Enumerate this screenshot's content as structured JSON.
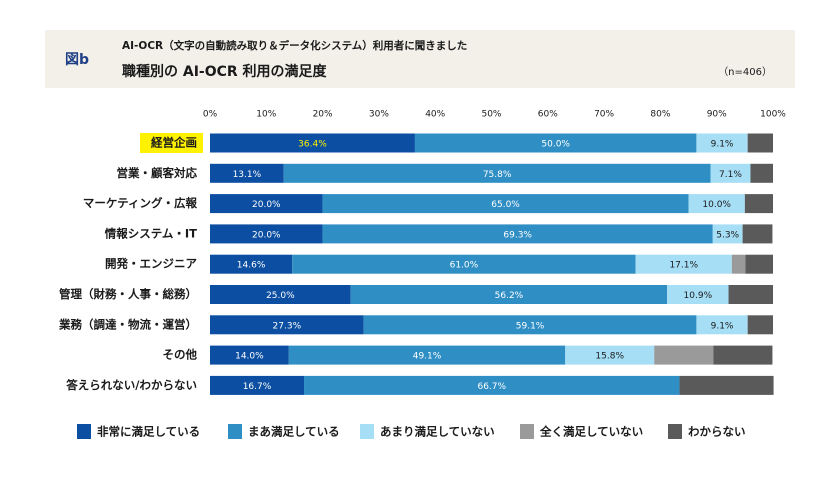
{
  "header": {
    "figure": "図b",
    "subtitle": "AI-OCR（文字の自動読み取り＆データ化システム）利用者に聞きました",
    "title": "職種別の AI-OCR 利用の満足度",
    "note": "（n=406）"
  },
  "chart_data": {
    "type": "stacked-bar-horizontal",
    "categories": [
      "経営企画",
      "営業・顧客対応",
      "マーケティング・広報",
      "情報システム・IT",
      "開発・エンジニア",
      "管理（財務・人事・総務）",
      "業務（調達・物流・運営）",
      "その他",
      "答えられない/わからない"
    ],
    "highlight_index": 0,
    "highlight_color": "#fff200",
    "xlim": [
      0,
      100
    ],
    "xticks": [
      {
        "value": 0,
        "label": "0%"
      },
      {
        "value": 10,
        "label": "10%"
      },
      {
        "value": 20,
        "label": "20%"
      },
      {
        "value": 30,
        "label": "30%"
      },
      {
        "value": 40,
        "label": "40%"
      },
      {
        "value": 50,
        "label": "50%"
      },
      {
        "value": 60,
        "label": "60%"
      },
      {
        "value": 70,
        "label": "70%"
      },
      {
        "value": 80,
        "label": "80%"
      },
      {
        "value": 90,
        "label": "90%"
      },
      {
        "value": 100,
        "label": "100%"
      }
    ],
    "series": [
      {
        "name": "非常に満足している",
        "color": "#0b4ea2",
        "label_color": "#ffffff",
        "values": [
          36.4,
          13.1,
          20.0,
          20.0,
          14.6,
          25.0,
          27.3,
          14.0,
          16.7
        ],
        "value_labels": [
          "36.4%",
          "13.1%",
          "20.0%",
          "20.0%",
          "14.6%",
          "25.0%",
          "27.3%",
          "14.0%",
          "16.7%"
        ]
      },
      {
        "name": "まあ満足している",
        "color": "#2f8ec4",
        "label_color": "#ffffff",
        "values": [
          50.0,
          75.8,
          65.0,
          69.3,
          61.0,
          56.2,
          59.1,
          49.1,
          66.7
        ],
        "value_labels": [
          "50.0%",
          "75.8%",
          "65.0%",
          "69.3%",
          "61.0%",
          "56.2%",
          "59.1%",
          "49.1%",
          "66.7%"
        ]
      },
      {
        "name": "あまり満足していない",
        "color": "#a6def6",
        "label_color": "#1a1a1a",
        "values": [
          9.1,
          7.1,
          10.0,
          5.3,
          17.1,
          10.9,
          9.1,
          15.8,
          0
        ],
        "value_labels": [
          "9.1%",
          "7.1%",
          "10.0%",
          "5.3%",
          "17.1%",
          "10.9%",
          "9.1%",
          "15.8%",
          null
        ]
      },
      {
        "name": "全く満足していない",
        "color": "#9a9a9a",
        "label_color": "#1a1a1a",
        "values": [
          0,
          0,
          0,
          0,
          2.4,
          0,
          0,
          10.5,
          0
        ]
      },
      {
        "name": "わからない",
        "color": "#5a5a5a",
        "label_color": "#ffffff",
        "values": [
          4.5,
          4.0,
          5.0,
          5.3,
          4.9,
          7.9,
          4.5,
          10.5,
          16.7
        ]
      }
    ]
  }
}
